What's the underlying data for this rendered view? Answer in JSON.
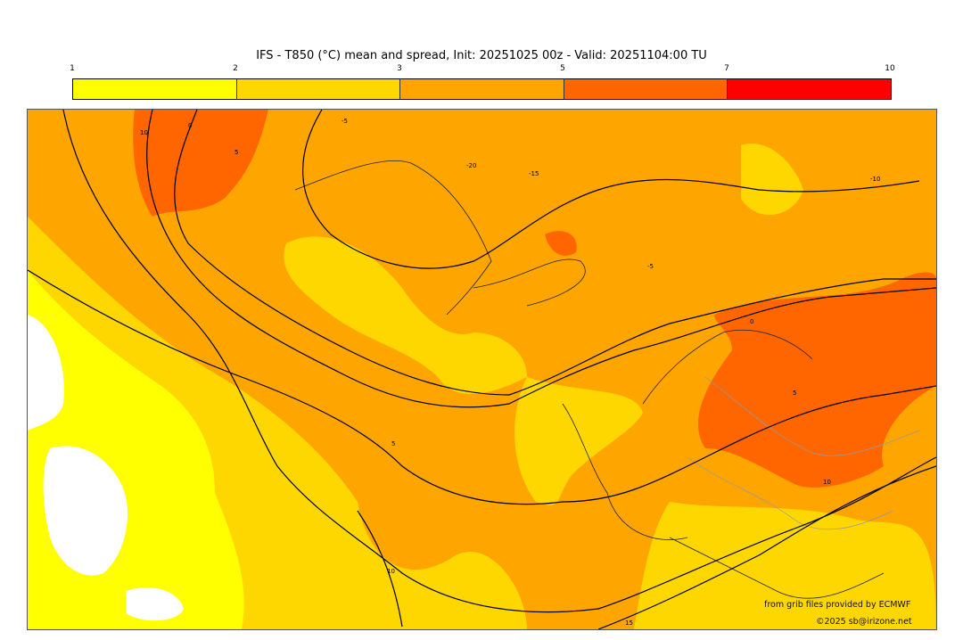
{
  "title": "IFS - T850 (°C) mean and spread, Init: 20251025 00z - Valid: 20251104:00 TU",
  "colorbar": {
    "ticks": [
      "1",
      "2",
      "3",
      "5",
      "7",
      "10"
    ],
    "colors": [
      "#ffff00",
      "#ffd700",
      "#ffa500",
      "#ff6600",
      "#ff0000"
    ]
  },
  "map": {
    "background_color": "#ffa500",
    "contour_labels": [
      "10",
      "0",
      "5",
      "-5",
      "-20",
      "-15",
      "-10",
      "-5",
      "0",
      "5",
      "10",
      "5",
      "10",
      "15"
    ]
  },
  "credits": {
    "source": "from grib files provided by ECMWF",
    "copyright": "©2025 sb@irizone.net"
  }
}
